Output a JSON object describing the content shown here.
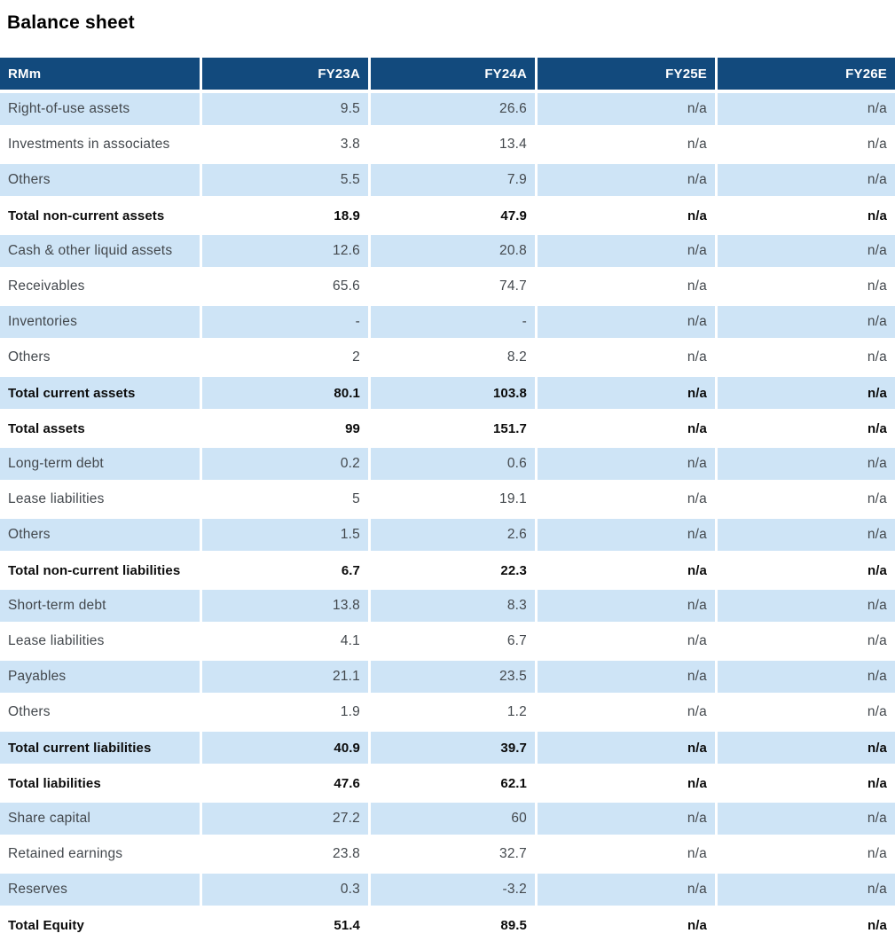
{
  "title": "Balance sheet",
  "colors": {
    "header_bg": "#124A7D",
    "shaded_row_bg": "#CEE4F6",
    "header_text": "#FFFFFF",
    "body_text": "#43484D",
    "total_text": "#0B0B0B"
  },
  "table": {
    "unit_header": "RMm",
    "columns": [
      "FY23A",
      "FY24A",
      "FY25E",
      "FY26E"
    ],
    "rows": [
      {
        "label": "Right-of-use assets",
        "values": [
          "9.5",
          "26.6",
          "n/a",
          "n/a"
        ],
        "bold": false
      },
      {
        "label": "Investments in associates",
        "values": [
          "3.8",
          "13.4",
          "n/a",
          "n/a"
        ],
        "bold": false
      },
      {
        "label": "Others",
        "values": [
          "5.5",
          "7.9",
          "n/a",
          "n/a"
        ],
        "bold": false
      },
      {
        "label": "Total non-current assets",
        "values": [
          "18.9",
          "47.9",
          "n/a",
          "n/a"
        ],
        "bold": true
      },
      {
        "label": "Cash & other liquid assets",
        "values": [
          "12.6",
          "20.8",
          "n/a",
          "n/a"
        ],
        "bold": false
      },
      {
        "label": "Receivables",
        "values": [
          "65.6",
          "74.7",
          "n/a",
          "n/a"
        ],
        "bold": false
      },
      {
        "label": "Inventories",
        "values": [
          "-",
          "-",
          "n/a",
          "n/a"
        ],
        "bold": false
      },
      {
        "label": "Others",
        "values": [
          "2",
          "8.2",
          "n/a",
          "n/a"
        ],
        "bold": false
      },
      {
        "label": "Total current assets",
        "values": [
          "80.1",
          "103.8",
          "n/a",
          "n/a"
        ],
        "bold": true
      },
      {
        "label": "Total assets",
        "values": [
          "99",
          "151.7",
          "n/a",
          "n/a"
        ],
        "bold": true
      },
      {
        "label": "Long-term debt",
        "values": [
          "0.2",
          "0.6",
          "n/a",
          "n/a"
        ],
        "bold": false
      },
      {
        "label": "Lease liabilities",
        "values": [
          "5",
          "19.1",
          "n/a",
          "n/a"
        ],
        "bold": false
      },
      {
        "label": "Others",
        "values": [
          "1.5",
          "2.6",
          "n/a",
          "n/a"
        ],
        "bold": false
      },
      {
        "label": "Total non-current liabilities",
        "values": [
          "6.7",
          "22.3",
          "n/a",
          "n/a"
        ],
        "bold": true
      },
      {
        "label": "Short-term debt",
        "values": [
          "13.8",
          "8.3",
          "n/a",
          "n/a"
        ],
        "bold": false
      },
      {
        "label": "Lease liabilities",
        "values": [
          "4.1",
          "6.7",
          "n/a",
          "n/a"
        ],
        "bold": false
      },
      {
        "label": "Payables",
        "values": [
          "21.1",
          "23.5",
          "n/a",
          "n/a"
        ],
        "bold": false
      },
      {
        "label": "Others",
        "values": [
          "1.9",
          "1.2",
          "n/a",
          "n/a"
        ],
        "bold": false
      },
      {
        "label": "Total current liabilities",
        "values": [
          "40.9",
          "39.7",
          "n/a",
          "n/a"
        ],
        "bold": true
      },
      {
        "label": "Total liabilities",
        "values": [
          "47.6",
          "62.1",
          "n/a",
          "n/a"
        ],
        "bold": true
      },
      {
        "label": "Share capital",
        "values": [
          "27.2",
          "60",
          "n/a",
          "n/a"
        ],
        "bold": false
      },
      {
        "label": "Retained earnings",
        "values": [
          "23.8",
          "32.7",
          "n/a",
          "n/a"
        ],
        "bold": false
      },
      {
        "label": "Reserves",
        "values": [
          "0.3",
          "-3.2",
          "n/a",
          "n/a"
        ],
        "bold": false
      },
      {
        "label": "Total Equity",
        "values": [
          "51.4",
          "89.5",
          "n/a",
          "n/a"
        ],
        "bold": true
      }
    ]
  }
}
